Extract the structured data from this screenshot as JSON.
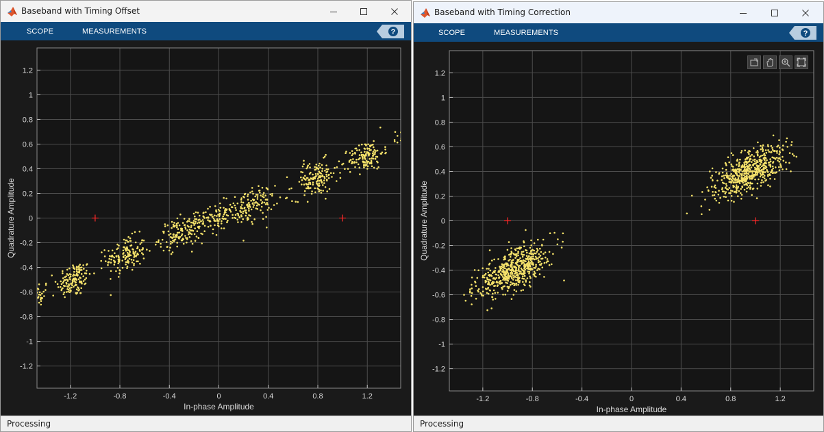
{
  "windows": [
    {
      "title": "Baseband with Timing Offset",
      "tabs": [
        "SCOPE",
        "MEASUREMENTS"
      ],
      "help_label": "?",
      "status": "Processing"
    },
    {
      "title": "Baseband with Timing Correction",
      "tabs": [
        "SCOPE",
        "MEASUREMENTS"
      ],
      "help_label": "?",
      "status": "Processing"
    }
  ],
  "theme": {
    "toolstrip": "#0f4a7e",
    "axes_bg": "#1a1a1a",
    "grid": "#4d4d4d",
    "points": "#f5e26a",
    "reference": "#ff2a2a"
  },
  "chart_data": [
    {
      "type": "scatter",
      "title": "",
      "xlabel": "In-phase Amplitude",
      "ylabel": "Quadrature Amplitude",
      "xlim": [
        -1.47,
        1.47
      ],
      "ylim": [
        -1.38,
        1.38
      ],
      "xticks": [
        -1.2,
        -0.8,
        -0.4,
        0,
        0.4,
        0.8,
        1.2
      ],
      "yticks": [
        1.2,
        1,
        0.8,
        0.6,
        0.4,
        0.2,
        0,
        -0.2,
        -0.4,
        -0.6,
        -0.8,
        -1,
        -1.2
      ],
      "grid": true,
      "reference_points": [
        [
          -1,
          0
        ],
        [
          1,
          0
        ]
      ],
      "series": [
        {
          "color": "#f5e26a",
          "clusters": [
            {
              "cx": -1.45,
              "cy": -0.62,
              "sx": 0.04,
              "sy": 0.05,
              "n": 25
            },
            {
              "cx": -1.17,
              "cy": -0.5,
              "sx": 0.07,
              "sy": 0.07,
              "n": 140
            },
            {
              "cx": -0.75,
              "cy": -0.3,
              "sx": 0.08,
              "sy": 0.07,
              "n": 150
            },
            {
              "cx": -0.3,
              "cy": -0.12,
              "sx": 0.09,
              "sy": 0.06,
              "n": 150
            },
            {
              "cx": -0.02,
              "cy": 0.0,
              "sx": 0.1,
              "sy": 0.05,
              "n": 90
            },
            {
              "cx": 0.25,
              "cy": 0.1,
              "sx": 0.1,
              "sy": 0.07,
              "n": 150
            },
            {
              "cx": 0.78,
              "cy": 0.32,
              "sx": 0.09,
              "sy": 0.07,
              "n": 150
            },
            {
              "cx": 1.19,
              "cy": 0.5,
              "sx": 0.07,
              "sy": 0.06,
              "n": 140
            },
            {
              "cx": 1.45,
              "cy": 0.65,
              "sx": 0.03,
              "sy": 0.04,
              "n": 12
            }
          ]
        }
      ]
    },
    {
      "type": "scatter",
      "title": "",
      "xlabel": "In-phase Amplitude",
      "ylabel": "Quadrature Amplitude",
      "xlim": [
        -1.47,
        1.47
      ],
      "ylim": [
        -1.38,
        1.38
      ],
      "xticks": [
        -1.2,
        -0.8,
        -0.4,
        0,
        0.4,
        0.8,
        1.2
      ],
      "yticks": [
        1.2,
        1,
        0.8,
        0.6,
        0.4,
        0.2,
        0,
        -0.2,
        -0.4,
        -0.6,
        -0.8,
        -1,
        -1.2
      ],
      "grid": true,
      "reference_points": [
        [
          -1,
          0
        ],
        [
          1,
          0
        ]
      ],
      "series": [
        {
          "color": "#f5e26a",
          "clusters": [
            {
              "cx": -0.95,
              "cy": -0.4,
              "sx": 0.15,
              "sy": 0.08,
              "n": 560
            },
            {
              "cx": 0.95,
              "cy": 0.4,
              "sx": 0.15,
              "sy": 0.08,
              "n": 560
            }
          ]
        }
      ]
    }
  ]
}
